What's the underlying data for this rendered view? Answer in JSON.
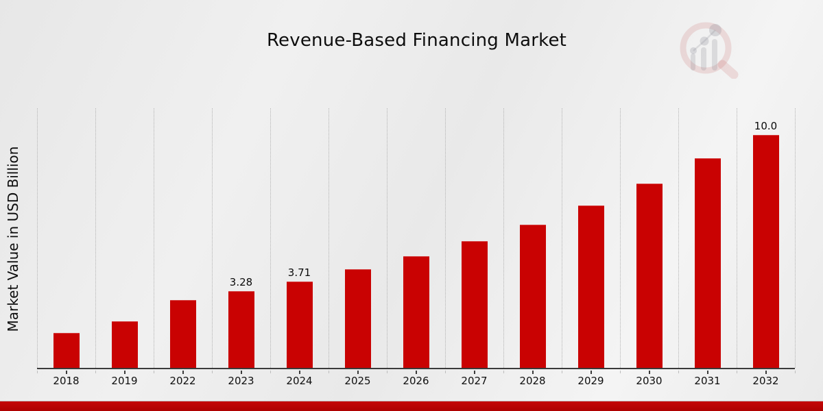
{
  "page": {
    "title": "Revenue-Based Financing Market"
  },
  "chart_data": {
    "type": "bar",
    "title": "Revenue-Based Financing Market",
    "xlabel": "",
    "ylabel": "Market Value in USD Billion",
    "categories": [
      "2018",
      "2019",
      "2022",
      "2023",
      "2024",
      "2025",
      "2026",
      "2027",
      "2028",
      "2029",
      "2030",
      "2031",
      "2032"
    ],
    "values": [
      1.5,
      2.0,
      2.9,
      3.28,
      3.71,
      4.24,
      4.8,
      5.45,
      6.15,
      6.98,
      7.92,
      9.0,
      10.0
    ],
    "bar_labels": [
      "",
      "",
      "",
      "3.28",
      "3.71",
      "",
      "",
      "",
      "",
      "",
      "",
      "",
      "10.0"
    ],
    "ylim": [
      0,
      11.2
    ],
    "grid": "vertical dotted lines at category boundaries",
    "legend_position": "none",
    "bar_color": "#c90202",
    "axis_color": "#3a3a3a",
    "background": "light gray gradient",
    "bottom_stripe_color": "#b80404"
  },
  "branding": {
    "logo_name": "magnifier-bar-chart-watermark"
  }
}
